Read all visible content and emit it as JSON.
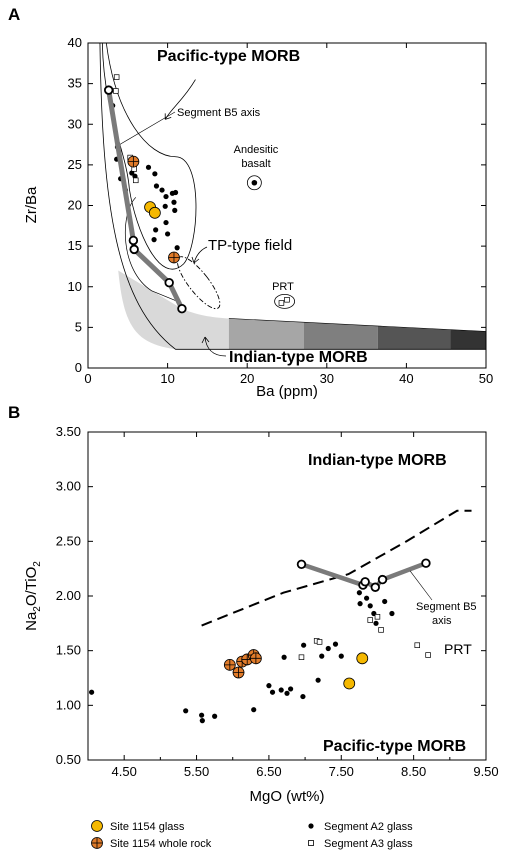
{
  "colors": {
    "site_glass_fill": "#f5b800",
    "site_whole_rock_fill": "#e07b2a",
    "trend_line": "#7a7a7a",
    "gradient": [
      "#d9d9d9",
      "#a6a6a6",
      "#7f7f7f",
      "#555555",
      "#333333",
      "#000000"
    ]
  },
  "chart_data": [
    {
      "panel": "A",
      "type": "scatter",
      "xlabel": "Ba (ppm)",
      "ylabel": "Zr/Ba",
      "xlim": [
        0,
        50
      ],
      "ylim": [
        0,
        40
      ],
      "xticks": [
        "0",
        "10",
        "20",
        "30",
        "40",
        "50"
      ],
      "yticks": [
        "0",
        "5",
        "10",
        "15",
        "20",
        "25",
        "30",
        "35",
        "40"
      ],
      "labels": {
        "pacific": "Pacific-type MORB",
        "indian": "Indian-type MORB",
        "tp_field": "TP-type field",
        "segment_b5": "Segment B5 axis",
        "andesitic_1": "Andesitic",
        "andesitic_2": "basalt",
        "prt": "PRT"
      },
      "segment_b5_axis": [
        [
          2.6,
          34.2
        ],
        [
          5.7,
          15.7
        ],
        [
          5.8,
          14.6
        ],
        [
          10.2,
          10.5
        ],
        [
          11.8,
          7.3
        ]
      ],
      "site_1154_glass": [
        [
          7.8,
          19.8
        ],
        [
          8.4,
          19.1
        ]
      ],
      "site_1154_whole_rock": [
        [
          5.7,
          25.4
        ],
        [
          10.8,
          13.6
        ]
      ],
      "segment_a2_glass": [
        [
          3.1,
          32.3
        ],
        [
          3.7,
          27.2
        ],
        [
          3.9,
          26.8
        ],
        [
          3.6,
          25.7
        ],
        [
          4.1,
          23.3
        ],
        [
          4.7,
          21.9
        ],
        [
          5.5,
          24.0
        ],
        [
          5.9,
          23.6
        ],
        [
          7.6,
          24.7
        ],
        [
          8.4,
          23.9
        ],
        [
          8.6,
          22.4
        ],
        [
          9.3,
          21.9
        ],
        [
          9.8,
          21.1
        ],
        [
          10.6,
          21.5
        ],
        [
          11.0,
          21.6
        ],
        [
          10.8,
          20.4
        ],
        [
          9.7,
          19.9
        ],
        [
          10.9,
          19.4
        ],
        [
          9.8,
          17.9
        ],
        [
          10.0,
          16.5
        ],
        [
          8.5,
          17.0
        ],
        [
          8.3,
          15.8
        ],
        [
          11.2,
          14.8
        ]
      ],
      "segment_a3_glass": [
        [
          3.6,
          35.8
        ],
        [
          3.5,
          34.1
        ],
        [
          5.3,
          25.9
        ],
        [
          6.0,
          23.1
        ],
        [
          5.8,
          24.5
        ]
      ],
      "andesitic_basalt": [
        [
          20.9,
          22.8
        ]
      ],
      "prt": [
        [
          24.3,
          8.0
        ],
        [
          25.0,
          8.4
        ]
      ],
      "indian_gradient_breaks": [
        17.7,
        27.1,
        36.4,
        45.5,
        50
      ]
    },
    {
      "panel": "B",
      "type": "scatter",
      "xlabel": "MgO (wt%)",
      "ylabel": "Na2O/TiO2",
      "ylabel_main": "Na",
      "ylabel_sub1": "2",
      "ylabel_mid": "O/TiO",
      "ylabel_sub2": "2",
      "xlim": [
        4.0,
        9.5
      ],
      "ylim": [
        0.5,
        3.5
      ],
      "xticks": [
        "4.50",
        "5.50",
        "6.50",
        "7.50",
        "8.50",
        "9.50"
      ],
      "yticks": [
        "0.50",
        "1.00",
        "1.50",
        "2.00",
        "2.50",
        "3.00",
        "3.50"
      ],
      "labels": {
        "indian": "Indian-type MORB",
        "pacific": "Pacific-type MORB",
        "segment_b5_1": "Segment B5",
        "segment_b5_2": "axis",
        "prt": "PRT"
      },
      "boundary_dashed": [
        [
          5.57,
          1.73
        ],
        [
          6.7,
          2.03
        ],
        [
          7.6,
          2.2
        ],
        [
          8.4,
          2.5
        ],
        [
          9.1,
          2.78
        ],
        [
          9.3,
          2.78
        ]
      ],
      "segment_b5_axis": [
        [
          6.95,
          2.29
        ],
        [
          7.8,
          2.1
        ],
        [
          7.83,
          2.13
        ],
        [
          7.97,
          2.08
        ],
        [
          8.07,
          2.15
        ],
        [
          8.67,
          2.3
        ]
      ],
      "site_1154_glass": [
        [
          7.61,
          1.2
        ],
        [
          7.79,
          1.43
        ]
      ],
      "site_1154_whole_rock": [
        [
          5.96,
          1.37
        ],
        [
          6.08,
          1.3
        ],
        [
          6.13,
          1.4
        ],
        [
          6.2,
          1.42
        ],
        [
          6.29,
          1.46
        ],
        [
          6.32,
          1.43
        ]
      ],
      "segment_a2_glass": [
        [
          4.05,
          1.12
        ],
        [
          5.35,
          0.95
        ],
        [
          5.57,
          0.91
        ],
        [
          5.58,
          0.86
        ],
        [
          5.75,
          0.9
        ],
        [
          6.29,
          0.96
        ],
        [
          6.5,
          1.18
        ],
        [
          6.55,
          1.12
        ],
        [
          6.67,
          1.14
        ],
        [
          6.71,
          1.44
        ],
        [
          6.75,
          1.11
        ],
        [
          6.8,
          1.15
        ],
        [
          6.97,
          1.08
        ],
        [
          6.98,
          1.55
        ],
        [
          7.18,
          1.23
        ],
        [
          7.23,
          1.45
        ],
        [
          7.32,
          1.52
        ],
        [
          7.42,
          1.56
        ],
        [
          7.5,
          1.45
        ],
        [
          7.76,
          1.93
        ],
        [
          7.75,
          2.03
        ],
        [
          7.85,
          1.98
        ],
        [
          7.9,
          1.91
        ],
        [
          7.95,
          1.84
        ],
        [
          7.98,
          1.75
        ],
        [
          8.1,
          1.95
        ],
        [
          8.2,
          1.84
        ]
      ],
      "segment_a3_glass": [
        [
          6.95,
          1.44
        ],
        [
          7.16,
          1.59
        ],
        [
          7.2,
          1.58
        ],
        [
          7.9,
          1.78
        ],
        [
          8.0,
          1.81
        ],
        [
          8.05,
          1.69
        ],
        [
          8.55,
          1.55
        ],
        [
          8.7,
          1.46
        ]
      ],
      "legend": [
        {
          "label": "Site 1154 glass",
          "marker": "glass"
        },
        {
          "label": "Site 1154 whole rock",
          "marker": "whole_rock"
        },
        {
          "label": "Segment A2 glass",
          "marker": "a2"
        },
        {
          "label": "Segment A3 glass",
          "marker": "a3"
        }
      ]
    }
  ]
}
